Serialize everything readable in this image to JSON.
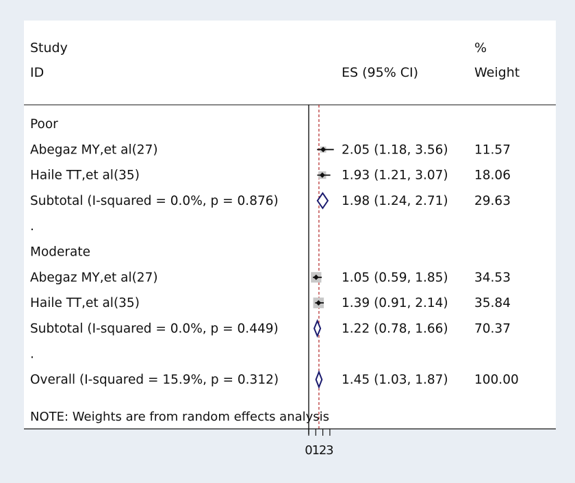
{
  "chart_data": {
    "type": "forest",
    "header": {
      "study_line1": "Study",
      "study_line2": "ID",
      "es_label": "ES (95% CI)",
      "weight_line1": "%",
      "weight_line2": "Weight"
    },
    "rows": [
      {
        "kind": "group",
        "label": "Poor"
      },
      {
        "kind": "study",
        "label": "Abegaz MY,et al(27)",
        "es": 2.05,
        "lo": 1.18,
        "hi": 3.56,
        "es_text": "2.05 (1.18, 3.56)",
        "weight": 11.57,
        "weight_text": "11.57"
      },
      {
        "kind": "study",
        "label": "Haile TT,et al(35)",
        "es": 1.93,
        "lo": 1.21,
        "hi": 3.07,
        "es_text": "1.93 (1.21, 3.07)",
        "weight": 18.06,
        "weight_text": "18.06"
      },
      {
        "kind": "subtotal",
        "label": "Subtotal  (I-squared = 0.0%, p = 0.876)",
        "es": 1.98,
        "lo": 1.24,
        "hi": 2.71,
        "es_text": "1.98 (1.24, 2.71)",
        "weight": 29.63,
        "weight_text": "29.63"
      },
      {
        "kind": "spacer",
        "label": "."
      },
      {
        "kind": "group",
        "label": "Moderate"
      },
      {
        "kind": "study",
        "label": "Abegaz MY,et al(27)",
        "es": 1.05,
        "lo": 0.59,
        "hi": 1.85,
        "es_text": "1.05 (0.59, 1.85)",
        "weight": 34.53,
        "weight_text": "34.53"
      },
      {
        "kind": "study",
        "label": "Haile TT,et al(35)",
        "es": 1.39,
        "lo": 0.91,
        "hi": 2.14,
        "es_text": "1.39 (0.91, 2.14)",
        "weight": 35.84,
        "weight_text": "35.84"
      },
      {
        "kind": "subtotal",
        "label": "Subtotal  (I-squared = 0.0%, p = 0.449)",
        "es": 1.22,
        "lo": 0.78,
        "hi": 1.66,
        "es_text": "1.22 (0.78, 1.66)",
        "weight": 70.37,
        "weight_text": "70.37"
      },
      {
        "kind": "spacer",
        "label": "."
      },
      {
        "kind": "overall",
        "label": "Overall  (I-squared = 15.9%, p = 0.312)",
        "es": 1.45,
        "lo": 1.03,
        "hi": 1.87,
        "es_text": "1.45 (1.03, 1.87)",
        "weight": 100.0,
        "weight_text": "100.00"
      }
    ],
    "note": "NOTE: Weights are from random effects analysis",
    "x_ticks": [
      {
        "value": 0,
        "label": "0"
      },
      {
        "value": 1,
        "label": "1"
      },
      {
        "value": 2,
        "label": "2"
      },
      {
        "value": 3,
        "label": "3"
      }
    ],
    "null_line": 0,
    "overall_line": 1.45,
    "colors": {
      "background": "#e9eef4",
      "panel": "#ffffff",
      "marker": "#111111",
      "box": "#c8c8c8",
      "diamond": "#1a1a6e",
      "overall_line": "#b22222"
    }
  }
}
